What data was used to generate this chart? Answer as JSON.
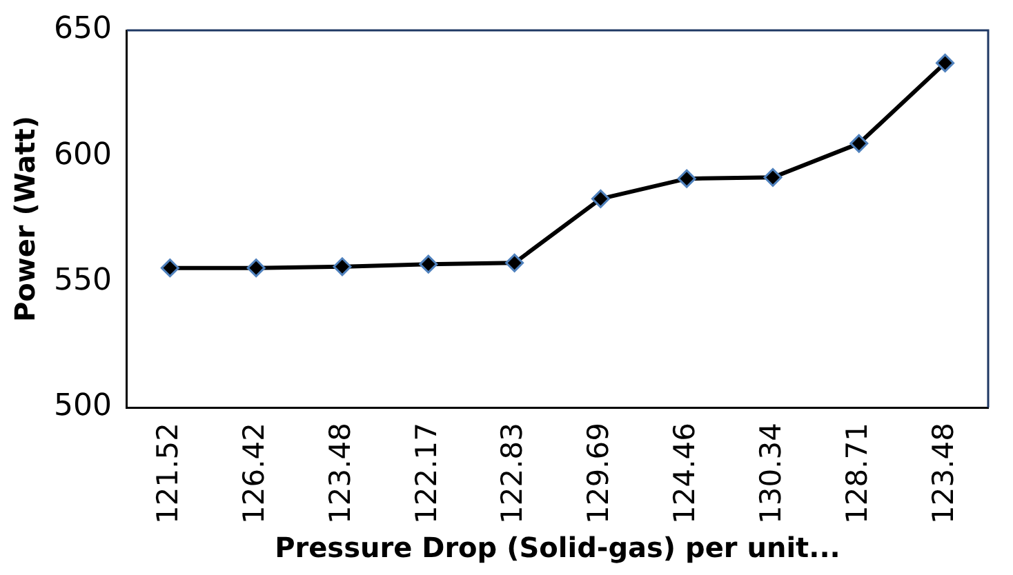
{
  "chart_data": {
    "type": "line",
    "xlabel": "Pressure Drop (Solid-gas) per unit...",
    "ylabel": "Power (Watt)",
    "categories": [
      "121.52",
      "126.42",
      "123.48",
      "122.17",
      "122.83",
      "129.69",
      "124.46",
      "130.34",
      "128.71",
      "123.48"
    ],
    "series": [
      {
        "color": "#000000",
        "values": [
          555.5,
          555.5,
          556,
          557,
          557.5,
          583,
          591,
          591.5,
          605,
          637
        ]
      }
    ],
    "ylim": [
      500,
      650
    ],
    "yticks": [
      500,
      550,
      600,
      650
    ],
    "grid": false,
    "legend": false,
    "marker": "diamond",
    "line_style": "solid"
  }
}
